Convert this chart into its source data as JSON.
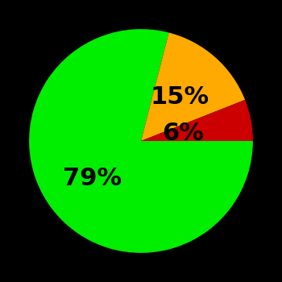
{
  "slices": [
    79,
    15,
    6
  ],
  "colors": [
    "#00ee00",
    "#ffaa00",
    "#cc0000"
  ],
  "labels": [
    "79%",
    "15%",
    "6%"
  ],
  "background_color": "#000000",
  "startangle": 0,
  "label_fontsize": 22,
  "label_fontweight": "bold",
  "label_colors": [
    "#000000",
    "#000000",
    "#000000"
  ],
  "label_radii": [
    0.55,
    0.52,
    0.38
  ]
}
